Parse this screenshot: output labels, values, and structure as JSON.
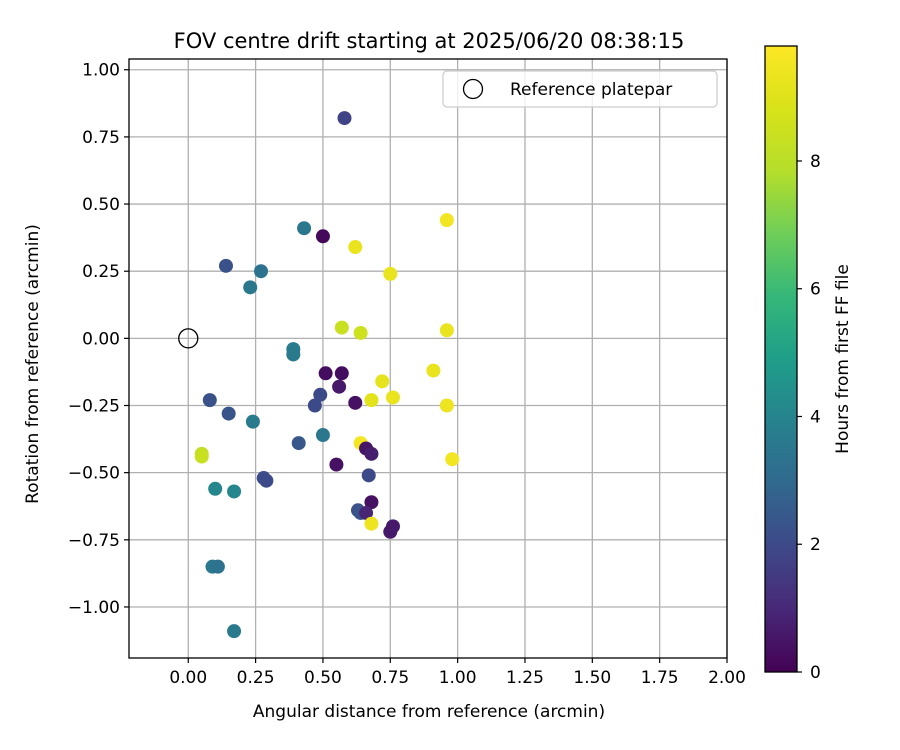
{
  "chart_data": {
    "type": "scatter",
    "title": "FOV centre drift starting at 2025/06/20 08:38:15",
    "xlabel": "Angular distance from reference (arcmin)",
    "ylabel": "Rotation from reference (arcmin)",
    "xlim": [
      -0.22,
      2.0
    ],
    "ylim": [
      -1.19,
      1.04
    ],
    "xticks": [
      0.0,
      0.25,
      0.5,
      0.75,
      1.0,
      1.25,
      1.5,
      1.75,
      2.0
    ],
    "xtick_labels": [
      "0.00",
      "0.25",
      "0.50",
      "0.75",
      "1.00",
      "1.25",
      "1.50",
      "1.75",
      "2.00"
    ],
    "yticks": [
      1.0,
      0.75,
      0.5,
      0.25,
      0.0,
      -0.25,
      -0.5,
      -0.75,
      -1.0
    ],
    "ytick_labels": [
      "1.00",
      "0.75",
      "0.50",
      "0.25",
      "0.00",
      "−0.25",
      "−0.50",
      "−0.75",
      "−1.00"
    ],
    "grid": true,
    "colormap": "viridis",
    "colorbar": {
      "label": "Hours from first FF file",
      "range": [
        0,
        9.8
      ],
      "ticks": [
        0,
        2,
        4,
        6,
        8
      ],
      "tick_labels": [
        "0",
        "2",
        "4",
        "6",
        "8"
      ]
    },
    "legend": {
      "position": "upper right",
      "entries": [
        {
          "label": "Reference platepar",
          "marker": "open-circle"
        }
      ]
    },
    "reference_point": {
      "x": 0.0,
      "y": 0.0,
      "label": "Reference platepar"
    },
    "points": [
      {
        "x": 0.58,
        "y": 0.82,
        "c": 1.8
      },
      {
        "x": 0.43,
        "y": 0.41,
        "c": 3.5
      },
      {
        "x": 0.5,
        "y": 0.38,
        "c": 0.2
      },
      {
        "x": 0.14,
        "y": 0.27,
        "c": 2.2
      },
      {
        "x": 0.27,
        "y": 0.25,
        "c": 3.3
      },
      {
        "x": 0.23,
        "y": 0.19,
        "c": 3.5
      },
      {
        "x": 0.96,
        "y": 0.44,
        "c": 9.5
      },
      {
        "x": 0.62,
        "y": 0.34,
        "c": 9.3
      },
      {
        "x": 0.75,
        "y": 0.24,
        "c": 9.3
      },
      {
        "x": 0.57,
        "y": 0.04,
        "c": 8.4
      },
      {
        "x": 0.64,
        "y": 0.02,
        "c": 8.5
      },
      {
        "x": 0.96,
        "y": 0.03,
        "c": 9.3
      },
      {
        "x": 0.39,
        "y": -0.04,
        "c": 3.7
      },
      {
        "x": 0.39,
        "y": -0.06,
        "c": 3.6
      },
      {
        "x": 0.51,
        "y": -0.13,
        "c": 0.3
      },
      {
        "x": 0.57,
        "y": -0.13,
        "c": 0.3
      },
      {
        "x": 0.56,
        "y": -0.18,
        "c": 0.6
      },
      {
        "x": 0.49,
        "y": -0.21,
        "c": 2.0
      },
      {
        "x": 0.47,
        "y": -0.25,
        "c": 2.0
      },
      {
        "x": 0.62,
        "y": -0.24,
        "c": 0.4
      },
      {
        "x": 0.72,
        "y": -0.16,
        "c": 9.2
      },
      {
        "x": 0.76,
        "y": -0.22,
        "c": 9.3
      },
      {
        "x": 0.68,
        "y": -0.23,
        "c": 9.1
      },
      {
        "x": 0.91,
        "y": -0.12,
        "c": 9.3
      },
      {
        "x": 0.96,
        "y": -0.25,
        "c": 9.4
      },
      {
        "x": 0.08,
        "y": -0.23,
        "c": 2.2
      },
      {
        "x": 0.15,
        "y": -0.28,
        "c": 2.3
      },
      {
        "x": 0.24,
        "y": -0.31,
        "c": 3.6
      },
      {
        "x": 0.5,
        "y": -0.36,
        "c": 3.5
      },
      {
        "x": 0.41,
        "y": -0.39,
        "c": 2.4
      },
      {
        "x": 0.64,
        "y": -0.39,
        "c": 9.6
      },
      {
        "x": 0.66,
        "y": -0.41,
        "c": 0.5
      },
      {
        "x": 0.68,
        "y": -0.43,
        "c": 0.7
      },
      {
        "x": 0.55,
        "y": -0.47,
        "c": 0.4
      },
      {
        "x": 0.67,
        "y": -0.51,
        "c": 2.0
      },
      {
        "x": 0.98,
        "y": -0.45,
        "c": 9.5
      },
      {
        "x": 0.05,
        "y": -0.43,
        "c": 8.2
      },
      {
        "x": 0.05,
        "y": -0.44,
        "c": 8.4
      },
      {
        "x": 0.28,
        "y": -0.52,
        "c": 2.1
      },
      {
        "x": 0.29,
        "y": -0.53,
        "c": 2.0
      },
      {
        "x": 0.1,
        "y": -0.56,
        "c": 4.1
      },
      {
        "x": 0.17,
        "y": -0.57,
        "c": 4.1
      },
      {
        "x": 0.68,
        "y": -0.61,
        "c": 0.4
      },
      {
        "x": 0.63,
        "y": -0.64,
        "c": 2.2
      },
      {
        "x": 0.64,
        "y": -0.65,
        "c": 2.3
      },
      {
        "x": 0.66,
        "y": -0.65,
        "c": 0.9
      },
      {
        "x": 0.68,
        "y": -0.69,
        "c": 9.4
      },
      {
        "x": 0.76,
        "y": -0.7,
        "c": 0.6
      },
      {
        "x": 0.75,
        "y": -0.72,
        "c": 0.6
      },
      {
        "x": 0.09,
        "y": -0.85,
        "c": 3.5
      },
      {
        "x": 0.11,
        "y": -0.85,
        "c": 3.3
      },
      {
        "x": 0.17,
        "y": -1.09,
        "c": 3.6
      }
    ]
  }
}
